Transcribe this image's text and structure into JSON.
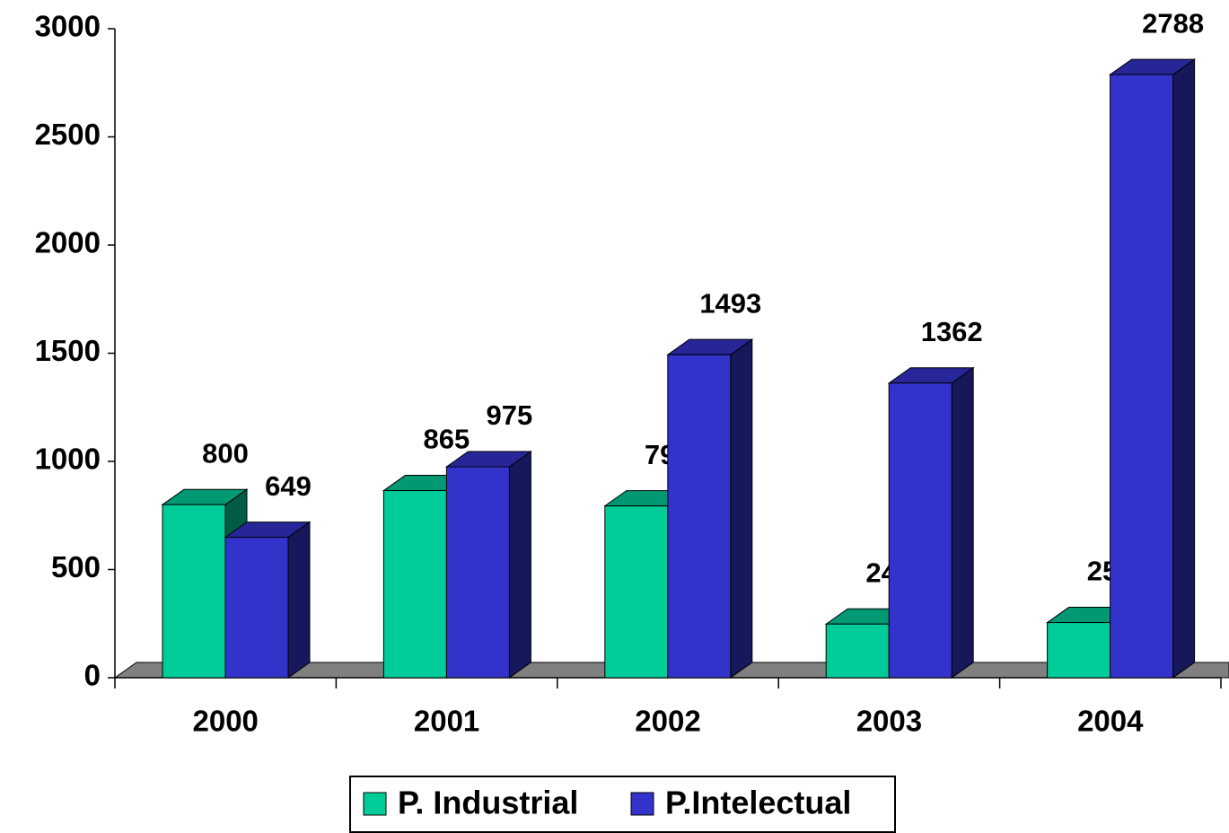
{
  "chart_data": {
    "type": "bar",
    "categories": [
      "2000",
      "2001",
      "2002",
      "2003",
      "2004"
    ],
    "series": [
      {
        "name": "P. Industrial",
        "color": "#00cc99",
        "values": [
          800,
          865,
          794,
          248,
          255
        ]
      },
      {
        "name": "P.Intelectual",
        "color": "#3333cc",
        "values": [
          649,
          975,
          1493,
          1362,
          2788
        ]
      }
    ],
    "ylim": [
      0,
      3000
    ],
    "yticks": [
      0,
      500,
      1000,
      1500,
      2000,
      2500,
      3000
    ],
    "legend": "bottom"
  }
}
